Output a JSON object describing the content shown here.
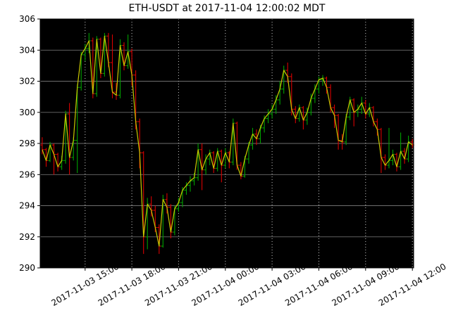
{
  "title": "ETH-USDT at 2017-11-04 12:00:02 MDT",
  "chart_data": {
    "type": "ohlc",
    "title": "ETH-USDT at 2017-11-04 12:00:02 MDT",
    "xlabel": "",
    "ylabel": "",
    "ylim": [
      290,
      306
    ],
    "y_ticks": [
      290,
      292,
      294,
      296,
      298,
      300,
      302,
      304,
      306
    ],
    "x_tick_labels": [
      "2017-11-03 15:00",
      "2017-11-03 18:00",
      "2017-11-03 21:00",
      "2017-11-04 00:00",
      "2017-11-04 03:00",
      "2017-11-04 06:00",
      "2017-11-04 09:00",
      "2017-11-04 12:00"
    ],
    "x_range_minutes_from_nov3_midnight": [
      727,
      2165
    ],
    "grid": true,
    "legend": "none",
    "interval_minutes": 15,
    "colors": {
      "figure_bg": "#ffffff",
      "plot_bg": "#000000",
      "up_bar": "#00a000",
      "down_bar": "#d80000",
      "close_line": "#c9c900",
      "h_grid": "#6e6e6e",
      "v_grid": "#c8c8c8",
      "text": "#000000"
    },
    "series": [
      {
        "name": "ohlc-bars",
        "style": "open-close-tick-bars"
      },
      {
        "name": "close-line",
        "style": "line"
      }
    ],
    "bars_columns": [
      "time",
      "open",
      "high",
      "low",
      "close"
    ],
    "bars": [
      [
        "2017-11-03 12:15",
        297.9,
        298.4,
        297.3,
        297.6
      ],
      [
        "2017-11-03 12:30",
        297.6,
        297.7,
        296.5,
        296.9
      ],
      [
        "2017-11-03 12:45",
        296.9,
        298.1,
        296.8,
        297.9
      ],
      [
        "2017-11-03 13:00",
        297.9,
        298.0,
        296.0,
        297.3
      ],
      [
        "2017-11-03 13:15",
        297.3,
        297.4,
        296.2,
        296.5
      ],
      [
        "2017-11-03 13:30",
        296.5,
        297.2,
        296.3,
        296.9
      ],
      [
        "2017-11-03 13:45",
        296.9,
        300.1,
        296.7,
        299.9
      ],
      [
        "2017-11-03 14:00",
        299.9,
        300.6,
        296.0,
        297.1
      ],
      [
        "2017-11-03 14:15",
        297.1,
        298.4,
        296.9,
        298.2
      ],
      [
        "2017-11-03 14:30",
        298.2,
        301.8,
        296.1,
        301.6
      ],
      [
        "2017-11-03 14:45",
        301.6,
        303.9,
        301.4,
        303.7
      ],
      [
        "2017-11-03 15:00",
        303.7,
        304.4,
        303.3,
        304.1
      ],
      [
        "2017-11-03 15:15",
        304.1,
        305.1,
        303.8,
        304.6
      ],
      [
        "2017-11-03 15:30",
        304.6,
        304.8,
        300.9,
        301.2
      ],
      [
        "2017-11-03 15:45",
        301.2,
        304.9,
        301.0,
        304.7
      ],
      [
        "2017-11-03 16:00",
        304.7,
        304.8,
        302.2,
        302.5
      ],
      [
        "2017-11-03 16:15",
        302.5,
        305.1,
        302.3,
        304.9
      ],
      [
        "2017-11-03 16:30",
        304.9,
        305.1,
        302.9,
        303.2
      ],
      [
        "2017-11-03 16:45",
        303.2,
        305.0,
        300.9,
        301.3
      ],
      [
        "2017-11-03 17:00",
        301.3,
        301.9,
        300.8,
        301.1
      ],
      [
        "2017-11-03 17:15",
        301.1,
        304.7,
        300.9,
        304.3
      ],
      [
        "2017-11-03 17:30",
        304.3,
        304.5,
        302.7,
        303.0
      ],
      [
        "2017-11-03 17:45",
        303.0,
        305.0,
        302.8,
        303.9
      ],
      [
        "2017-11-03 18:00",
        303.9,
        304.1,
        301.7,
        302.4
      ],
      [
        "2017-11-03 18:15",
        302.4,
        302.7,
        298.9,
        299.4
      ],
      [
        "2017-11-03 18:30",
        299.4,
        299.6,
        296.4,
        297.4
      ],
      [
        "2017-11-03 18:45",
        297.4,
        297.5,
        290.9,
        292.0
      ],
      [
        "2017-11-03 19:00",
        292.0,
        294.5,
        291.2,
        294.1
      ],
      [
        "2017-11-03 19:15",
        294.1,
        294.6,
        293.3,
        293.7
      ],
      [
        "2017-11-03 19:30",
        293.7,
        294.0,
        292.3,
        292.6
      ],
      [
        "2017-11-03 19:45",
        292.6,
        292.8,
        290.9,
        291.4
      ],
      [
        "2017-11-03 20:00",
        291.4,
        294.7,
        291.3,
        294.4
      ],
      [
        "2017-11-03 20:15",
        294.4,
        294.8,
        293.5,
        293.9
      ],
      [
        "2017-11-03 20:30",
        293.9,
        294.1,
        291.9,
        292.3
      ],
      [
        "2017-11-03 20:45",
        292.3,
        294.0,
        292.1,
        293.8
      ],
      [
        "2017-11-03 21:00",
        293.8,
        294.5,
        293.6,
        294.2
      ],
      [
        "2017-11-03 21:15",
        294.2,
        295.2,
        293.9,
        295.0
      ],
      [
        "2017-11-03 21:30",
        295.0,
        295.5,
        294.7,
        295.3
      ],
      [
        "2017-11-03 21:45",
        295.3,
        295.9,
        294.9,
        295.6
      ],
      [
        "2017-11-03 22:00",
        295.6,
        296.1,
        295.3,
        295.8
      ],
      [
        "2017-11-03 22:15",
        295.8,
        298.0,
        295.6,
        297.6
      ],
      [
        "2017-11-03 22:30",
        297.6,
        298.0,
        295.0,
        296.3
      ],
      [
        "2017-11-03 22:45",
        296.3,
        297.3,
        296.0,
        297.0
      ],
      [
        "2017-11-03 23:00",
        297.0,
        297.6,
        296.6,
        297.4
      ],
      [
        "2017-11-03 23:15",
        297.4,
        297.5,
        296.1,
        296.4
      ],
      [
        "2017-11-03 23:30",
        296.4,
        297.7,
        296.2,
        297.5
      ],
      [
        "2017-11-03 23:45",
        297.5,
        297.6,
        295.5,
        296.6
      ],
      [
        "2017-11-04 00:00",
        296.6,
        297.7,
        296.4,
        297.4
      ],
      [
        "2017-11-04 00:15",
        297.4,
        297.5,
        296.4,
        296.8
      ],
      [
        "2017-11-04 00:30",
        296.8,
        299.6,
        296.6,
        299.3
      ],
      [
        "2017-11-04 00:45",
        299.3,
        299.4,
        296.3,
        296.6
      ],
      [
        "2017-11-04 01:00",
        296.6,
        296.8,
        295.7,
        295.9
      ],
      [
        "2017-11-04 01:15",
        295.9,
        297.2,
        295.8,
        297.0
      ],
      [
        "2017-11-04 01:30",
        297.0,
        298.1,
        296.7,
        297.9
      ],
      [
        "2017-11-04 01:45",
        297.9,
        299.0,
        297.6,
        298.6
      ],
      [
        "2017-11-04 02:00",
        298.6,
        298.9,
        297.9,
        298.3
      ],
      [
        "2017-11-04 02:15",
        298.3,
        299.2,
        298.0,
        299.0
      ],
      [
        "2017-11-04 02:30",
        299.0,
        299.8,
        298.7,
        299.6
      ],
      [
        "2017-11-04 02:45",
        299.6,
        300.2,
        299.3,
        299.9
      ],
      [
        "2017-11-04 03:00",
        299.9,
        300.5,
        299.6,
        300.2
      ],
      [
        "2017-11-04 03:15",
        300.2,
        301.1,
        299.9,
        300.8
      ],
      [
        "2017-11-04 03:30",
        300.8,
        302.0,
        300.5,
        301.5
      ],
      [
        "2017-11-04 03:45",
        301.5,
        303.0,
        301.2,
        302.7
      ],
      [
        "2017-11-04 04:00",
        302.7,
        303.2,
        301.9,
        302.3
      ],
      [
        "2017-11-04 04:15",
        302.3,
        302.5,
        299.8,
        300.2
      ],
      [
        "2017-11-04 04:30",
        300.2,
        300.4,
        299.3,
        299.6
      ],
      [
        "2017-11-04 04:45",
        299.6,
        300.5,
        299.4,
        300.3
      ],
      [
        "2017-11-04 05:00",
        300.3,
        300.4,
        298.9,
        299.5
      ],
      [
        "2017-11-04 05:15",
        299.5,
        300.3,
        299.2,
        300.0
      ],
      [
        "2017-11-04 05:30",
        300.0,
        301.2,
        299.8,
        300.9
      ],
      [
        "2017-11-04 05:45",
        300.9,
        301.8,
        300.6,
        301.5
      ],
      [
        "2017-11-04 06:00",
        301.5,
        302.3,
        301.2,
        302.1
      ],
      [
        "2017-11-04 06:15",
        302.1,
        302.4,
        301.7,
        302.2
      ],
      [
        "2017-11-04 06:30",
        302.2,
        302.3,
        301.2,
        301.6
      ],
      [
        "2017-11-04 06:45",
        301.6,
        301.8,
        300.0,
        300.3
      ],
      [
        "2017-11-04 07:00",
        300.3,
        300.5,
        299.0,
        299.8
      ],
      [
        "2017-11-04 07:15",
        299.8,
        299.9,
        297.6,
        298.2
      ],
      [
        "2017-11-04 07:30",
        298.2,
        298.6,
        297.6,
        298.1
      ],
      [
        "2017-11-04 07:45",
        298.1,
        299.9,
        297.9,
        299.7
      ],
      [
        "2017-11-04 08:00",
        299.7,
        301.0,
        299.5,
        300.8
      ],
      [
        "2017-11-04 08:15",
        300.8,
        300.9,
        299.1,
        300.0
      ],
      [
        "2017-11-04 08:30",
        300.0,
        300.5,
        299.7,
        300.2
      ],
      [
        "2017-11-04 08:45",
        300.2,
        301.0,
        299.9,
        300.6
      ],
      [
        "2017-11-04 09:00",
        300.6,
        300.8,
        299.6,
        299.9
      ],
      [
        "2017-11-04 09:15",
        299.9,
        300.6,
        299.7,
        300.3
      ],
      [
        "2017-11-04 09:30",
        300.3,
        300.4,
        299.1,
        299.4
      ],
      [
        "2017-11-04 09:45",
        299.4,
        299.6,
        298.5,
        298.9
      ],
      [
        "2017-11-04 10:00",
        298.9,
        299.0,
        296.1,
        297.1
      ],
      [
        "2017-11-04 10:15",
        297.1,
        297.3,
        296.3,
        296.6
      ],
      [
        "2017-11-04 10:30",
        296.6,
        299.0,
        296.4,
        296.9
      ],
      [
        "2017-11-04 10:45",
        296.9,
        297.6,
        296.6,
        297.3
      ],
      [
        "2017-11-04 11:00",
        297.3,
        297.4,
        296.2,
        296.5
      ],
      [
        "2017-11-04 11:15",
        296.5,
        298.7,
        296.3,
        297.5
      ],
      [
        "2017-11-04 11:30",
        297.5,
        297.7,
        296.7,
        297.0
      ],
      [
        "2017-11-04 11:45",
        297.0,
        298.5,
        296.8,
        298.1
      ],
      [
        "2017-11-04 12:00",
        298.1,
        298.3,
        297.7,
        297.9
      ]
    ]
  }
}
